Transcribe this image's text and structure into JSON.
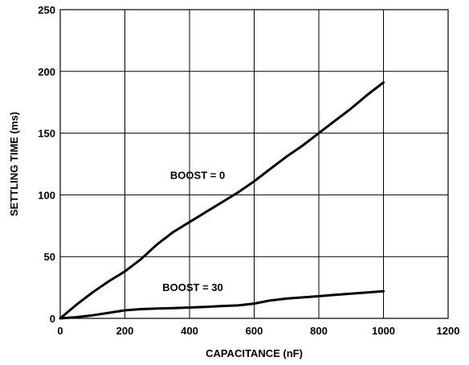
{
  "chart_data": {
    "type": "line",
    "title": "",
    "xlabel": "CAPACITANCE (nF)",
    "ylabel": "SETTLING TIME (ms)",
    "xlim": [
      0,
      1200
    ],
    "ylim": [
      0,
      250
    ],
    "xticks": [
      0,
      200,
      400,
      600,
      800,
      1000,
      1200
    ],
    "yticks": [
      0,
      50,
      100,
      150,
      200,
      250
    ],
    "grid": true,
    "series": [
      {
        "name": "BOOST = 0",
        "x": [
          0,
          50,
          100,
          150,
          200,
          250,
          300,
          350,
          400,
          450,
          500,
          550,
          600,
          650,
          700,
          750,
          800,
          850,
          900,
          950,
          1000
        ],
        "y": [
          0,
          11,
          21,
          30,
          38,
          48,
          60,
          70,
          78,
          86,
          94,
          102,
          111,
          121,
          131,
          140,
          150,
          160,
          170,
          181,
          191
        ]
      },
      {
        "name": "BOOST = 30",
        "x": [
          0,
          50,
          100,
          150,
          200,
          250,
          300,
          350,
          400,
          450,
          500,
          550,
          600,
          650,
          700,
          750,
          800,
          850,
          900,
          950,
          1000
        ],
        "y": [
          0,
          1,
          2.5,
          4.5,
          6.5,
          7.5,
          8,
          8.3,
          8.8,
          9.3,
          10,
          10.5,
          12,
          14.5,
          16,
          17,
          18,
          19,
          20,
          21,
          22
        ]
      }
    ],
    "annotations": [
      {
        "text": "BOOST = 0",
        "x": 425,
        "y": 113
      },
      {
        "text": "BOOST = 30",
        "x": 410,
        "y": 22
      }
    ]
  }
}
